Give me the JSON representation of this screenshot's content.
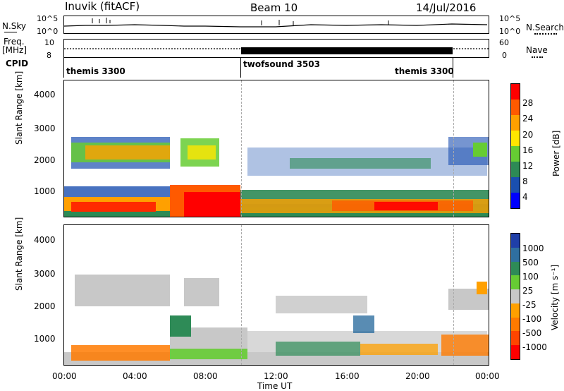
{
  "header": {
    "station": "Inuvik (fitACF)",
    "beam": "Beam 10",
    "date": "14/Jul/2016"
  },
  "top_panels": {
    "nsky_label": "N.Sky",
    "nsky_ticks": [
      "10^5",
      "10^0"
    ],
    "nsearch_label": "N.Search",
    "nsearch_ticks": [
      "10^5",
      "10^0"
    ],
    "freq_label_1": "Freq.",
    "freq_label_2": "[MHz]",
    "freq_ticks": [
      "10",
      "8"
    ],
    "nave_label": "Nave",
    "nave_ticks": [
      "60",
      "0"
    ],
    "cpid_label": "CPID",
    "cpid_segments": [
      {
        "name": "themis 3300"
      },
      {
        "name": "twofsound 3503"
      },
      {
        "name": "themis 3300"
      }
    ]
  },
  "chart_data": [
    {
      "type": "heatmap",
      "panel": "power",
      "ylabel": "Slant Range [km]",
      "yticks": [
        "4000",
        "3000",
        "2000",
        "1000"
      ],
      "ylim": [
        180,
        4600
      ],
      "colorbar_label": "Power [dB]",
      "colorbar_ticks": [
        "28",
        "24",
        "20",
        "16",
        "12",
        "8",
        "4"
      ],
      "colorbar_colors": [
        "#ff0000",
        "#ff5a00",
        "#ffa000",
        "#ffe600",
        "#66cc33",
        "#2d8a55",
        "#1a4fb0",
        "#0000ff"
      ],
      "echo_regions": [
        {
          "t0": 0.0,
          "t1": 6.0,
          "r0": 200,
          "r1": 650,
          "level": 24
        },
        {
          "t0": 6.0,
          "t1": 10.0,
          "r0": 200,
          "r1": 1100,
          "level": 28
        },
        {
          "t0": 10.0,
          "t1": 24.0,
          "r0": 200,
          "r1": 900,
          "level": 16
        },
        {
          "t0": 0.5,
          "t1": 5.5,
          "r0": 1800,
          "r1": 2700,
          "level": 16
        },
        {
          "t0": 6.2,
          "t1": 8.5,
          "r0": 1600,
          "r1": 2700,
          "level": 12
        },
        {
          "t0": 12.0,
          "t1": 22.0,
          "r0": 1300,
          "r1": 2400,
          "level": 8
        }
      ]
    },
    {
      "type": "heatmap",
      "panel": "velocity",
      "ylabel": "Slant Range [km]",
      "yticks": [
        "4000",
        "3000",
        "2000",
        "1000"
      ],
      "ylim": [
        180,
        4600
      ],
      "colorbar_label": "Velocity [m s⁻¹]",
      "colorbar_ticks": [
        "1000",
        "500",
        "100",
        "25",
        "-25",
        "-100",
        "-500",
        "-1000"
      ],
      "colorbar_colors": [
        "#1f3fa8",
        "#2f6fa0",
        "#2e8b57",
        "#66cc33",
        "#c8c8c8",
        "#ffa000",
        "#ff7a00",
        "#ff4500",
        "#ff0000"
      ],
      "xlabel": "Time UT",
      "xticks": [
        "00:00",
        "04:00",
        "08:00",
        "12:00",
        "16:00",
        "20:00",
        "00:00"
      ],
      "xlim": [
        0,
        24
      ]
    }
  ]
}
